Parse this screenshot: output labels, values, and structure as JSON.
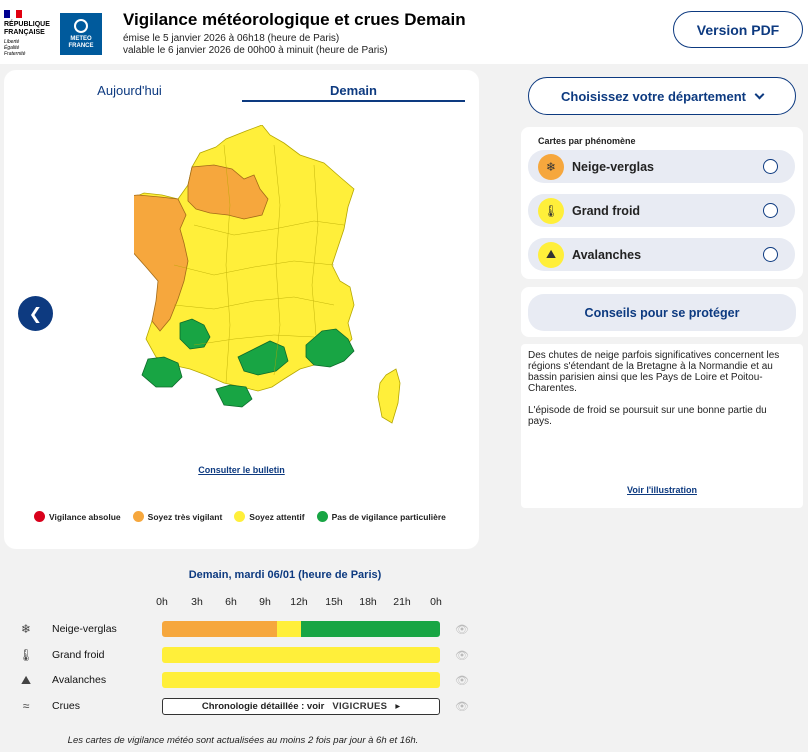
{
  "header": {
    "republic_lines": [
      "RÉPUBLIQUE",
      "FRANÇAISE"
    ],
    "republic_motto": [
      "Liberté",
      "Égalité",
      "Fraternité"
    ],
    "meteo_logo_lines": [
      "METEO",
      "FRANCE"
    ],
    "title": "Vigilance météorologique et crues Demain",
    "emitted": "émise le 5 janvier 2026 à 06h18 (heure de Paris)",
    "valid": "valable le 6 janvier 2026 de 00h00 à minuit (heure de Paris)",
    "pdf_button": "Version PDF"
  },
  "map_panel": {
    "tabs": [
      {
        "label": "Aujourd'hui",
        "active": false
      },
      {
        "label": "Demain",
        "active": true
      }
    ],
    "prev_icon": "chevron-left-icon",
    "bulletin_link": "Consulter le bulletin",
    "legend": [
      {
        "label": "Vigilance absolue",
        "color": "#d9001b"
      },
      {
        "label": "Soyez très vigilant",
        "color": "#f6a73d"
      },
      {
        "label": "Soyez attentif",
        "color": "#ffef3a"
      },
      {
        "label": "Pas de vigilance particulière",
        "color": "#18a544"
      }
    ]
  },
  "sidebar": {
    "dept_select": "Choisissez votre département",
    "phenomena_title": "Cartes par phénomène",
    "phenomena": [
      {
        "label": "Neige-verglas",
        "icon": "snow-ice-icon",
        "icon_color": "#f6a73d",
        "selected": false
      },
      {
        "label": "Grand froid",
        "icon": "thermometer-icon",
        "icon_color": "#ffef3a",
        "selected": false
      },
      {
        "label": "Avalanches",
        "icon": "avalanche-icon",
        "icon_color": "#ffef3a",
        "selected": false
      }
    ],
    "conseils_button": "Conseils pour se protéger",
    "text_paragraphs": [
      "Des chutes de neige parfois significatives concernent les régions s'étendant de la Bretagne à la Normandie et au bassin parisien ainsi que les Pays de Loire et Poitou-Charentes.",
      "L'épisode de froid se poursuit sur une bonne partie du pays."
    ],
    "illustration_link": "Voir l'illustration"
  },
  "timeline": {
    "title": "Demain, mardi 06/01 (heure de Paris)",
    "hours": [
      "0h",
      "3h",
      "6h",
      "9h",
      "12h",
      "15h",
      "18h",
      "21h",
      "0h"
    ],
    "rows": [
      {
        "label": "Neige-verglas",
        "icon": "snow-ice-icon",
        "segments": [
          {
            "level": "orange",
            "fraction": 0.415,
            "color": "#f6a73d"
          },
          {
            "level": "yellow",
            "fraction": 0.085,
            "color": "#ffef3a"
          },
          {
            "level": "green",
            "fraction": 0.5,
            "color": "#18a544"
          }
        ]
      },
      {
        "label": "Grand froid",
        "icon": "thermometer-icon",
        "segments": [
          {
            "level": "yellow",
            "fraction": 1.0,
            "color": "#ffef3a"
          }
        ]
      },
      {
        "label": "Avalanches",
        "icon": "avalanche-icon",
        "segments": [
          {
            "level": "yellow",
            "fraction": 1.0,
            "color": "#ffef3a"
          }
        ]
      },
      {
        "label": "Crues",
        "icon": "waves-icon",
        "segments": []
      }
    ],
    "crues_text": "Chronologie détaillée : voir",
    "crues_brand": "VIGICRUES",
    "footnote": "Les cartes de vigilance météo sont actualisées au moins 2 fois par jour à 6h et 16h."
  }
}
